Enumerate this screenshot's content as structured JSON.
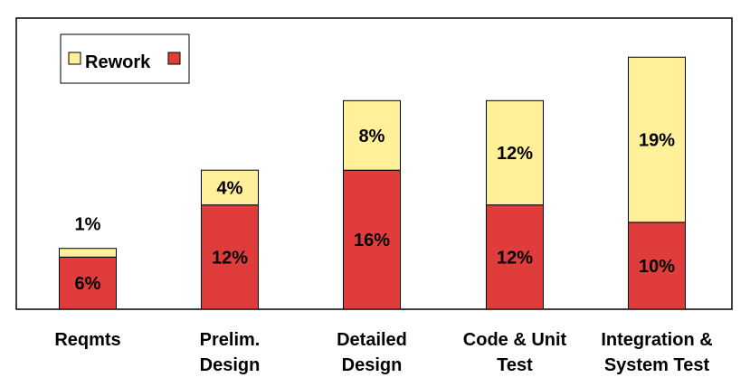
{
  "chart_data": {
    "type": "bar",
    "stacked": true,
    "categories": [
      [
        "Reqmts"
      ],
      [
        "Prelim.",
        "Design"
      ],
      [
        "Detailed",
        "Design"
      ],
      [
        "Code & Unit",
        "Test"
      ],
      [
        "Integration &",
        "System Test"
      ]
    ],
    "series": [
      {
        "key": "base",
        "color": "#e03c3c",
        "values": [
          6,
          12,
          16,
          12,
          10
        ],
        "labels": [
          "6%",
          "12%",
          "16%",
          "12%",
          "10%"
        ]
      },
      {
        "name": "Rework",
        "color": "#fff099",
        "values": [
          1,
          4,
          8,
          12,
          19
        ],
        "labels": [
          "1%",
          "4%",
          "8%",
          "12%",
          "19%"
        ]
      }
    ],
    "ylim": [
      0,
      33.5
    ],
    "grid": false,
    "legend": {
      "position": "top-left",
      "label": "Rework"
    },
    "title": "",
    "xlabel": "",
    "ylabel": ""
  }
}
